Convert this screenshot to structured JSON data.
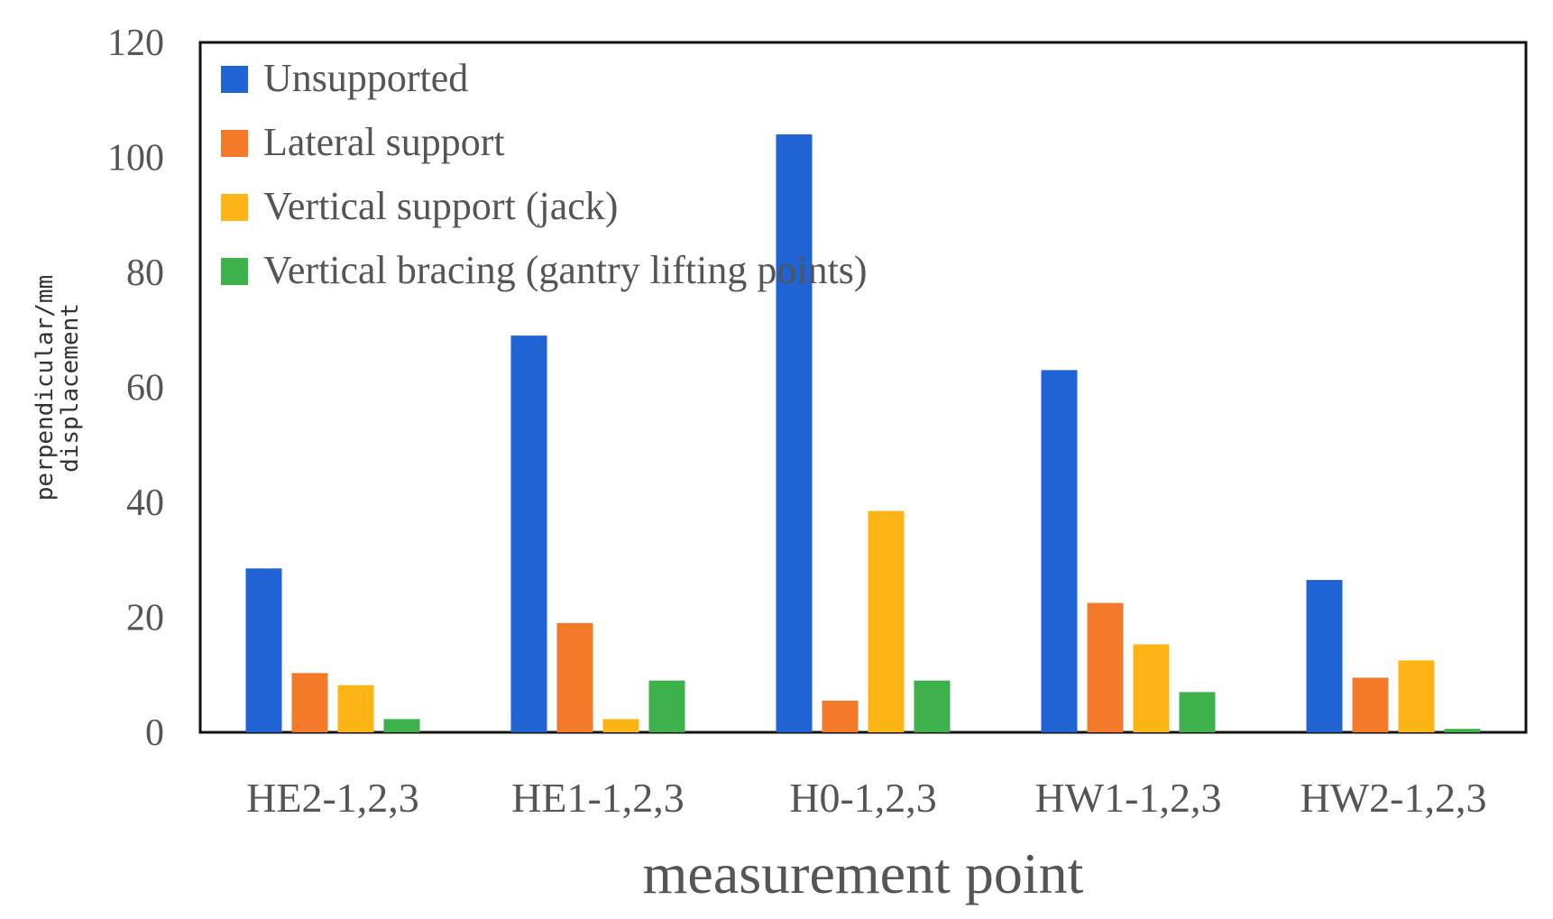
{
  "chart_data": {
    "type": "bar",
    "categories": [
      "HE2-1,2,3",
      "HE1-1,2,3",
      "H0-1,2,3",
      "HW1-1,2,3",
      "HW2-1,2,3"
    ],
    "series": [
      {
        "name": "Unsupported",
        "color": "#1f63d4",
        "values": [
          28.5,
          69,
          104,
          63,
          26.5
        ]
      },
      {
        "name": "Lateral support",
        "color": "#f47a2a",
        "values": [
          10.3,
          19,
          5.5,
          22.5,
          9.5
        ]
      },
      {
        "name": "Vertical support (jack)",
        "color": "#fdb515",
        "values": [
          8.2,
          2.3,
          38.5,
          15.3,
          12.5
        ]
      },
      {
        "name": "Vertical bracing (gantry lifting points)",
        "color": "#3eb24a",
        "values": [
          2.3,
          9,
          9,
          7,
          0.6
        ]
      }
    ],
    "xlabel": "measurement point",
    "ylabel": [
      "perpendicular/mm",
      "displacement"
    ],
    "ylim": [
      0,
      120
    ],
    "yticks": [
      "0",
      "20",
      "40",
      "60",
      "80",
      "100",
      "120"
    ],
    "grid": false,
    "legend_position": "top-left"
  }
}
